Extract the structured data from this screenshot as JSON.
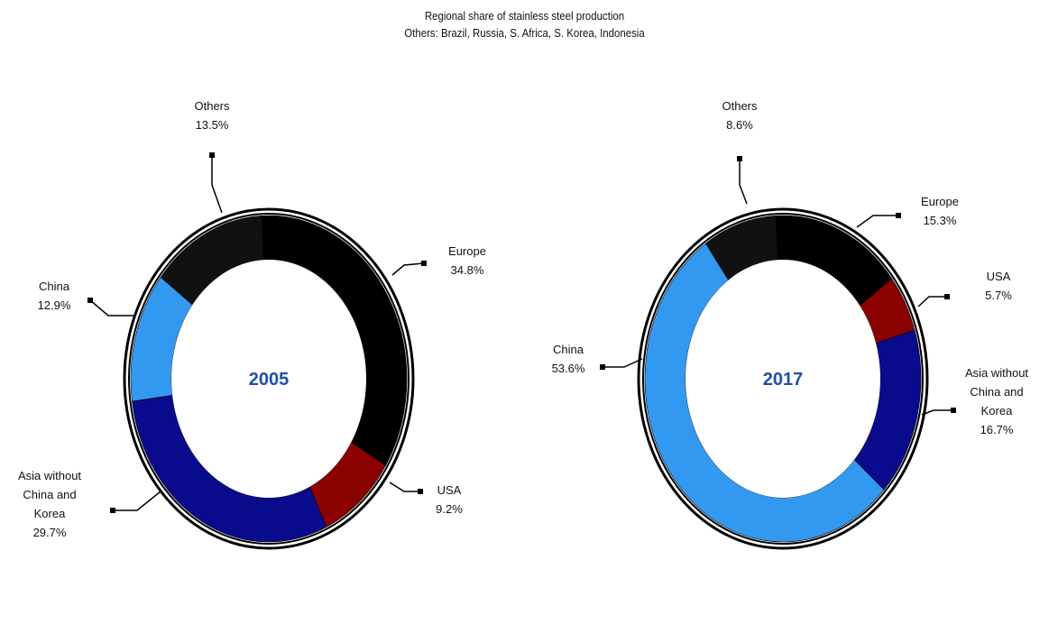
{
  "title": "Regional share of stainless steel production",
  "subtitle": "Others: Brazil, Russia, S. Africa, S. Korea, Indonesia",
  "colors": {
    "Europe": "#000000",
    "USA": "#8b0000",
    "Asia without China and Korea": "#0a0a8c",
    "China": "#3399f0",
    "Others": "#111111",
    "year_text": "#1f4fa8"
  },
  "chart_data": [
    {
      "type": "pie",
      "center_label": "2005",
      "slices": [
        {
          "name": "Europe",
          "label_lines": [
            "Europe"
          ],
          "value": 34.8,
          "value_text": "34.8%"
        },
        {
          "name": "USA",
          "label_lines": [
            "USA"
          ],
          "value": 9.2,
          "value_text": "9.2%"
        },
        {
          "name": "Asia without China and Korea",
          "label_lines": [
            "Asia without",
            "China and",
            "Korea"
          ],
          "value": 29.7,
          "value_text": "29.7%"
        },
        {
          "name": "China",
          "label_lines": [
            "China"
          ],
          "value": 12.9,
          "value_text": "12.9%"
        },
        {
          "name": "Others",
          "label_lines": [
            "Others"
          ],
          "value": 13.5,
          "value_text": "13.5%"
        }
      ]
    },
    {
      "type": "pie",
      "center_label": "2017",
      "slices": [
        {
          "name": "Europe",
          "label_lines": [
            "Europe"
          ],
          "value": 15.3,
          "value_text": "15.3%"
        },
        {
          "name": "USA",
          "label_lines": [
            "USA"
          ],
          "value": 5.7,
          "value_text": "5.7%"
        },
        {
          "name": "Asia without China and Korea",
          "label_lines": [
            "Asia without",
            "China and",
            "Korea"
          ],
          "value": 16.7,
          "value_text": "16.7%"
        },
        {
          "name": "China",
          "label_lines": [
            "China"
          ],
          "value": 53.6,
          "value_text": "53.6%"
        },
        {
          "name": "Others",
          "label_lines": [
            "Others"
          ],
          "value": 8.6,
          "value_text": "8.6%"
        }
      ]
    }
  ]
}
